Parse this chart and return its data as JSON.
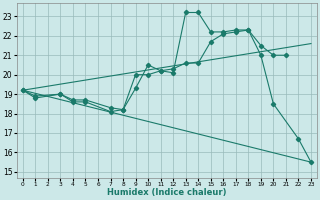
{
  "xlabel": "Humidex (Indice chaleur)",
  "bg_color": "#cce8e8",
  "grid_color": "#99bbbb",
  "line_color": "#1a7a6a",
  "xlim": [
    -0.5,
    23.5
  ],
  "ylim": [
    14.7,
    23.7
  ],
  "yticks": [
    15,
    16,
    17,
    18,
    19,
    20,
    21,
    22,
    23
  ],
  "xticks": [
    0,
    1,
    2,
    3,
    4,
    5,
    6,
    7,
    8,
    9,
    10,
    11,
    12,
    13,
    14,
    15,
    16,
    17,
    18,
    19,
    20,
    21,
    22,
    23
  ],
  "line1_x": [
    0,
    1,
    3,
    4,
    5,
    7,
    8,
    9,
    10,
    11,
    12,
    13,
    14,
    15,
    16,
    17,
    18,
    19,
    20,
    22,
    23
  ],
  "line1_y": [
    19.2,
    18.8,
    19.0,
    18.6,
    18.6,
    18.1,
    18.2,
    19.3,
    20.5,
    20.2,
    20.1,
    23.2,
    23.2,
    22.2,
    22.2,
    22.3,
    22.3,
    21.0,
    18.5,
    16.7,
    15.5
  ],
  "line2_x": [
    0,
    1,
    3,
    4,
    5,
    7,
    8,
    9,
    10,
    11,
    12,
    13,
    14,
    15,
    16,
    17,
    18,
    19,
    20,
    21
  ],
  "line2_y": [
    19.2,
    18.9,
    19.0,
    18.7,
    18.7,
    18.3,
    18.2,
    20.0,
    20.0,
    20.2,
    20.3,
    20.6,
    20.6,
    21.7,
    22.1,
    22.2,
    22.3,
    21.5,
    21.0,
    21.0
  ],
  "line3_x": [
    0,
    23
  ],
  "line3_y": [
    19.2,
    21.6
  ],
  "line4_x": [
    0,
    23
  ],
  "line4_y": [
    19.2,
    15.5
  ]
}
